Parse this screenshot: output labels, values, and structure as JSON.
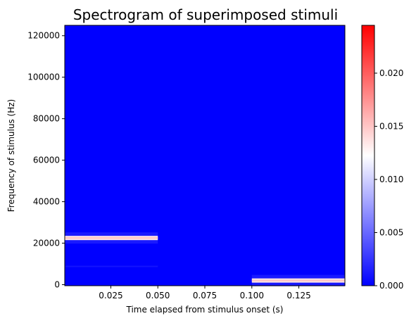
{
  "chart_data": {
    "type": "heatmap",
    "title": "Spectrogram of superimposed stimuli",
    "xlabel": "Time elapsed from stimulus onset (s)",
    "ylabel": "Frequency of stimulus (Hz)",
    "xlim": [
      0.0005,
      0.1495
    ],
    "ylim": [
      -500,
      125000
    ],
    "xticks": [
      0.025,
      0.05,
      0.075,
      0.1,
      0.125
    ],
    "xtick_labels": [
      "0.025",
      "0.050",
      "0.075",
      "0.100",
      "0.125"
    ],
    "yticks": [
      0,
      20000,
      40000,
      60000,
      80000,
      100000,
      120000
    ],
    "ytick_labels": [
      "0",
      "20000",
      "40000",
      "60000",
      "80000",
      "100000",
      "120000"
    ],
    "colorbar": {
      "colormap": "bwr",
      "range": [
        0,
        0.0245
      ],
      "ticks": [
        0,
        0.005,
        0.01,
        0.015,
        0.02
      ],
      "tick_labels": [
        "0.000",
        "0.005",
        "0.010",
        "0.015",
        "0.020"
      ]
    },
    "background_value": 0,
    "segments": [
      {
        "t_start": 0.0005,
        "t_end": 0.05,
        "freq_hz": 22500,
        "peak_value": 0.0245,
        "halo_value": 0.0012,
        "faint_freq_hz": 8800,
        "faint_value": 0.0009
      },
      {
        "t_start": 0.1,
        "t_end": 0.1495,
        "freq_hz": 2000,
        "peak_value": 0.0245,
        "halo_value": 0.0012
      }
    ]
  }
}
